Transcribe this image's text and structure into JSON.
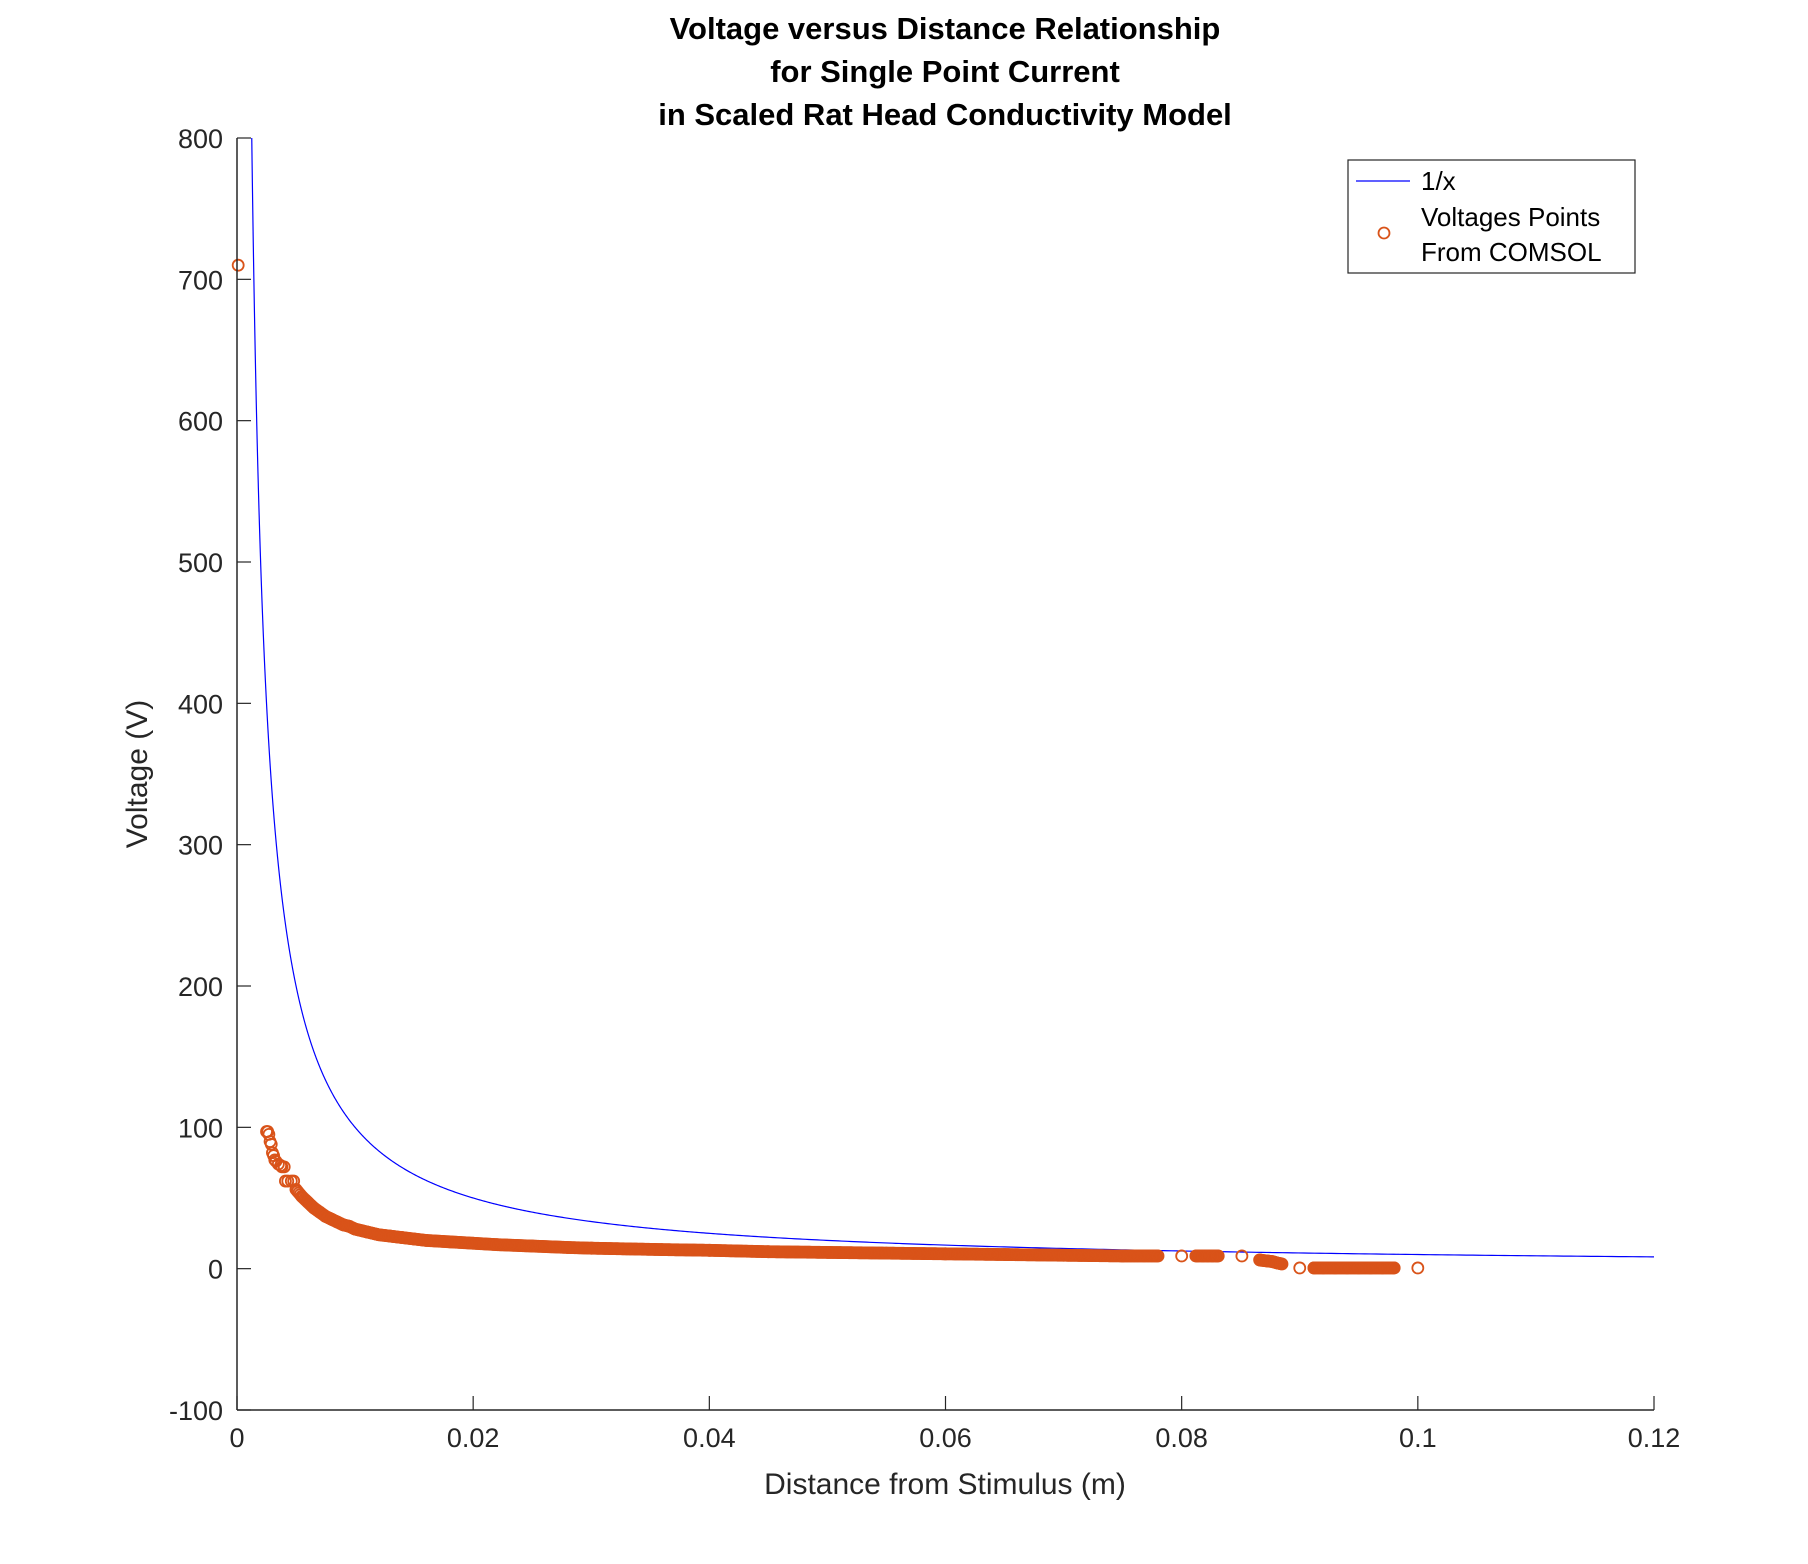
{
  "chart_data": {
    "type": "line",
    "title": [
      "Voltage versus Distance Relationship",
      "for Single Point Current",
      "in Scaled Rat Head Conductivity Model"
    ],
    "xlabel": "Distance from Stimulus (m)",
    "ylabel": "Voltage (V)",
    "xlim": [
      0,
      0.12
    ],
    "ylim": [
      -100,
      800
    ],
    "xticks": [
      0,
      0.02,
      0.04,
      0.06,
      0.08,
      0.1,
      0.12
    ],
    "xtick_labels": [
      "0",
      "0.02",
      "0.04",
      "0.06",
      "0.08",
      "0.1",
      "0.12"
    ],
    "yticks": [
      -100,
      0,
      100,
      200,
      300,
      400,
      500,
      600,
      700,
      800
    ],
    "ytick_labels": [
      "-100",
      "0",
      "100",
      "200",
      "300",
      "400",
      "500",
      "600",
      "700",
      "800"
    ],
    "grid": false,
    "legend_position": "top-right",
    "series": [
      {
        "name": "1/x",
        "kind": "line",
        "color": "#0000ff",
        "function": "1/x",
        "x_range": [
          0.00125,
          0.12
        ]
      },
      {
        "name": "Voltages Points From COMSOL",
        "legend_lines": [
          "Voltages Points",
          "From COMSOL"
        ],
        "kind": "scatter",
        "marker": "circle-open",
        "color": "#d95319",
        "points": [
          [
            0.0001,
            710
          ],
          [
            0.0025,
            97
          ],
          [
            0.0026,
            97
          ],
          [
            0.0027,
            95
          ],
          [
            0.0028,
            90
          ],
          [
            0.0029,
            88
          ],
          [
            0.003,
            82
          ],
          [
            0.0031,
            80
          ],
          [
            0.0032,
            77
          ],
          [
            0.0033,
            76
          ],
          [
            0.0035,
            74
          ],
          [
            0.0037,
            73
          ],
          [
            0.0038,
            72
          ],
          [
            0.004,
            72
          ],
          [
            0.0041,
            62
          ],
          [
            0.0043,
            62
          ],
          [
            0.0046,
            62
          ],
          [
            0.0048,
            62
          ],
          [
            0.005,
            56
          ],
          [
            0.0055,
            51
          ],
          [
            0.006,
            47
          ],
          [
            0.0065,
            43
          ],
          [
            0.007,
            40
          ],
          [
            0.0075,
            37
          ],
          [
            0.008,
            35
          ],
          [
            0.0085,
            33
          ],
          [
            0.009,
            31
          ],
          [
            0.0095,
            30
          ],
          [
            0.01,
            28
          ],
          [
            0.011,
            26
          ],
          [
            0.012,
            24
          ],
          [
            0.013,
            23
          ],
          [
            0.014,
            22
          ],
          [
            0.015,
            21
          ],
          [
            0.016,
            20
          ],
          [
            0.018,
            19
          ],
          [
            0.02,
            18
          ],
          [
            0.022,
            17
          ],
          [
            0.025,
            16
          ],
          [
            0.028,
            15
          ],
          [
            0.03,
            14.5
          ],
          [
            0.033,
            14
          ],
          [
            0.036,
            13.5
          ],
          [
            0.04,
            13
          ],
          [
            0.045,
            12
          ],
          [
            0.05,
            11.5
          ],
          [
            0.055,
            11
          ],
          [
            0.06,
            10.5
          ],
          [
            0.065,
            10
          ],
          [
            0.07,
            9.5
          ],
          [
            0.075,
            9
          ],
          [
            0.078,
            9
          ],
          [
            0.08,
            9
          ],
          [
            0.0813,
            9
          ],
          [
            0.0818,
            9
          ],
          [
            0.0822,
            9
          ],
          [
            0.0826,
            9
          ],
          [
            0.083,
            9
          ],
          [
            0.0851,
            9
          ],
          [
            0.0867,
            6
          ],
          [
            0.0872,
            5.5
          ],
          [
            0.0877,
            5
          ],
          [
            0.0881,
            4
          ],
          [
            0.0884,
            3.5
          ],
          [
            0.09,
            0.5
          ],
          [
            0.0912,
            0.5
          ],
          [
            0.092,
            0.5
          ],
          [
            0.093,
            0.5
          ],
          [
            0.094,
            0.5
          ],
          [
            0.095,
            0.5
          ],
          [
            0.096,
            0.5
          ],
          [
            0.097,
            0.5
          ],
          [
            0.098,
            0.5
          ],
          [
            0.1,
            0.5
          ]
        ],
        "dense_runs": [
          {
            "x_from": 0.005,
            "x_to": 0.078
          },
          {
            "x_from": 0.0812,
            "x_to": 0.0831
          },
          {
            "x_from": 0.0866,
            "x_to": 0.0885
          },
          {
            "x_from": 0.0912,
            "x_to": 0.098
          }
        ]
      }
    ]
  }
}
